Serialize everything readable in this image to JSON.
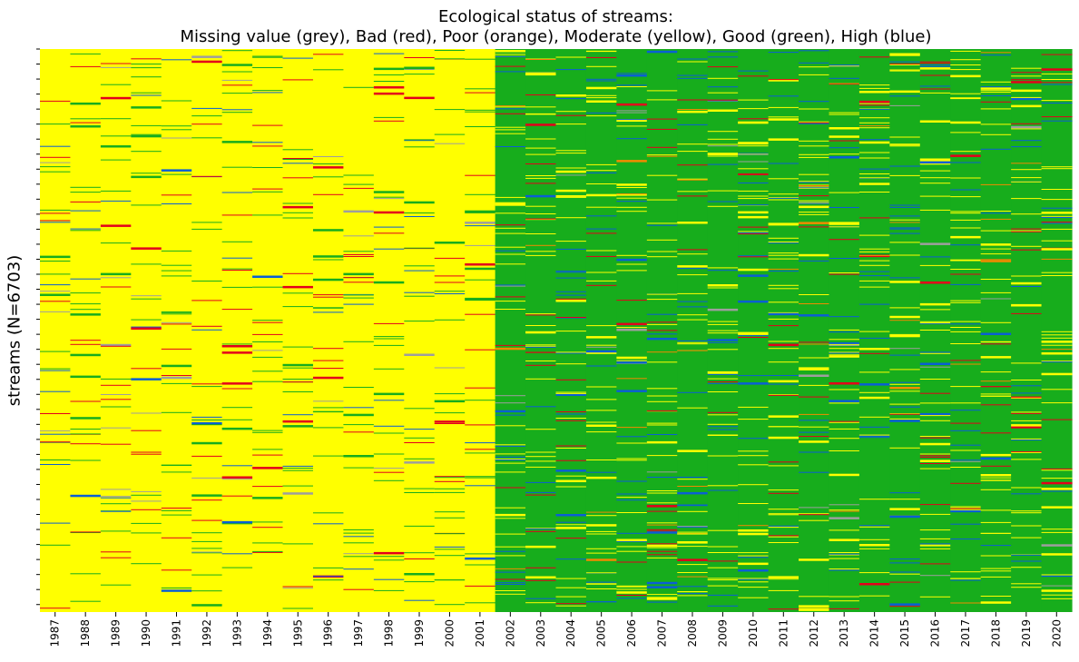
{
  "chart_data": {
    "type": "heatmap",
    "title": "Ecological status of streams:",
    "subtitle": "Missing value (grey), Bad (red), Poor (orange), Moderate (yellow), Good (green), High (blue)",
    "xlabel": "",
    "ylabel": "streams (N=6703)",
    "categories": [
      "1987",
      "1988",
      "1989",
      "1990",
      "1991",
      "1992",
      "1993",
      "1994",
      "1995",
      "1996",
      "1997",
      "1998",
      "1999",
      "2000",
      "2001",
      "2002",
      "2003",
      "2004",
      "2005",
      "2006",
      "2007",
      "2008",
      "2009",
      "2010",
      "2011",
      "2012",
      "2013",
      "2014",
      "2015",
      "2016",
      "2017",
      "2018",
      "2019",
      "2020"
    ],
    "n_streams": 6703,
    "status_classes": [
      {
        "name": "Missing value",
        "color": "#9e9e9e"
      },
      {
        "name": "Bad",
        "color": "#e3001b"
      },
      {
        "name": "Poor",
        "color": "#f08a00"
      },
      {
        "name": "Moderate",
        "color": "#ffff00"
      },
      {
        "name": "Good",
        "color": "#17ad1c"
      },
      {
        "name": "High",
        "color": "#0a5fd4"
      }
    ],
    "dominant_status_by_year": [
      "Moderate",
      "Moderate",
      "Moderate",
      "Moderate",
      "Moderate",
      "Moderate",
      "Moderate",
      "Moderate",
      "Moderate",
      "Moderate",
      "Moderate",
      "Moderate",
      "Moderate",
      "Moderate",
      "Moderate",
      "Good",
      "Good",
      "Good",
      "Good",
      "Good",
      "Good",
      "Good",
      "Good",
      "Good",
      "Good",
      "Good",
      "Good",
      "Good",
      "Good",
      "Good",
      "Good",
      "Good",
      "Good",
      "Good"
    ],
    "grid": false,
    "legend": "none"
  }
}
